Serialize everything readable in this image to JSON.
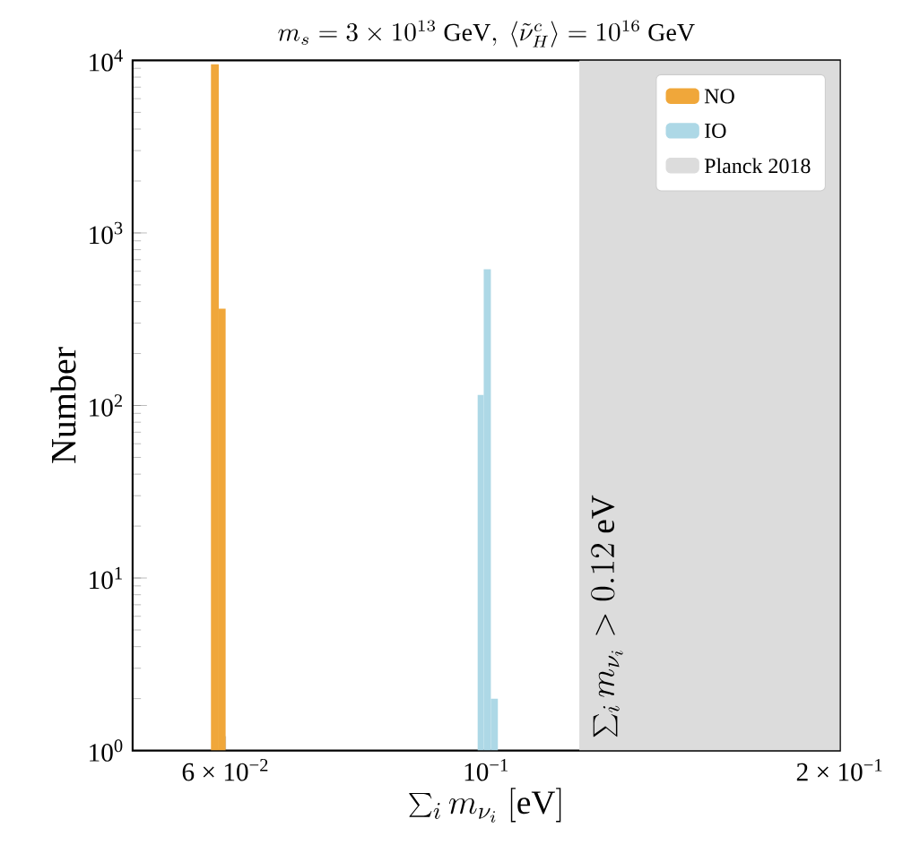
{
  "chart_data": {
    "type": "histogram",
    "title": "m_s = 3\\times 10^{13}\\ \\mathrm{GeV},\\ \\langle\\tilde{\\nu}^c_{H}\\rangle = 10^{16}\\ \\mathrm{GeV}",
    "xlabel": "\\sum_i m_{\\nu_i}\\ [\\mathrm{eV}]",
    "ylabel": "Number",
    "log": "xy",
    "legend": "top right",
    "xlim": [
      0.05,
      0.2
    ],
    "ylim": [
      1,
      10000
    ],
    "xticks": [
      {
        "value": 0.06,
        "label": "6 × 10$^{−2}$"
      },
      {
        "value": 0.1,
        "label": "10$^{−1}$"
      },
      {
        "value": 0.2,
        "label": "2 × 10$^{−1}$"
      }
    ],
    "yticks": [
      {
        "value": 1,
        "label": "10$^{0}$"
      },
      {
        "value": 10,
        "label": "10$^{1}$"
      },
      {
        "value": 100,
        "label": "10$^{2}$"
      },
      {
        "value": 1000,
        "label": "10$^{3}$"
      },
      {
        "value": 10000,
        "label": "10$^{4}$"
      }
    ],
    "bins": [
      0.0583,
      0.0592,
      0.06,
      0.0983,
      0.0995,
      0.1009,
      0.1023
    ],
    "series": [
      {
        "name": "NO",
        "color": "#f0a73a",
        "values": [
          9500,
          364,
          null,
          null,
          null,
          null
        ]
      },
      {
        "name": "IO",
        "color": "#add8e6",
        "values": [
          null,
          null,
          null,
          115,
          616,
          2
        ]
      }
    ],
    "bands": [
      {
        "axis": "x",
        "from": 0.12,
        "to": 0.2,
        "label": "Planck 2018",
        "color": "#dcdcdc"
      }
    ],
    "annotations": [
      {
        "text": "\\sum_i m_{\\nu_i} > 0.12\\ \\mathrm{eV}",
        "x": 0.12,
        "y": 1
      }
    ]
  }
}
